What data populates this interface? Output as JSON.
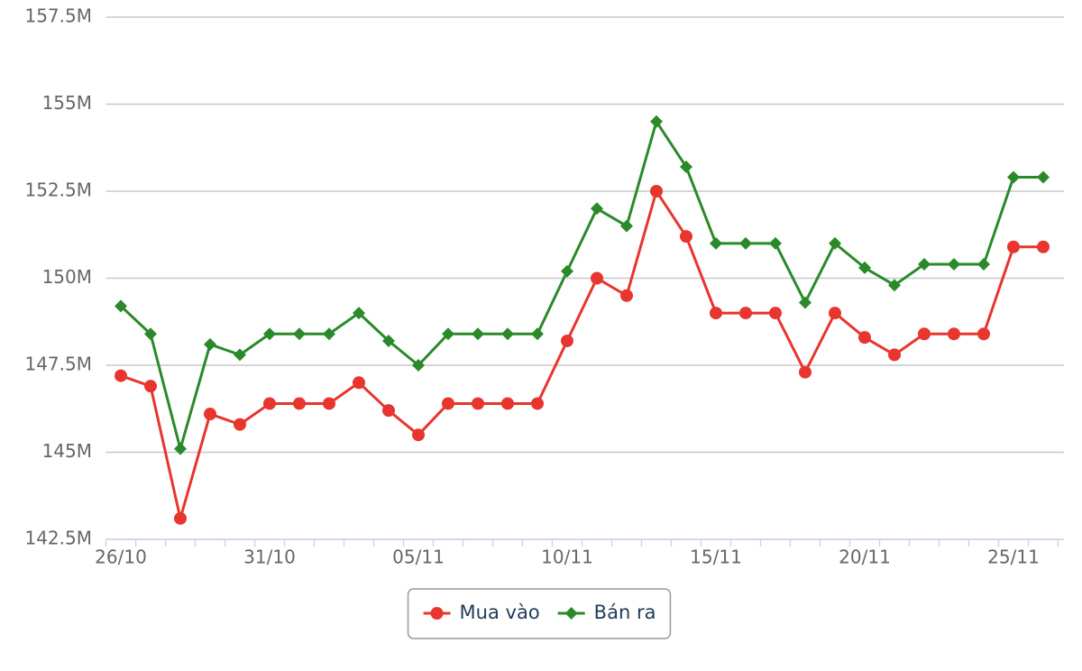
{
  "chart_data": {
    "type": "line",
    "categories": [
      "26/10",
      null,
      null,
      null,
      null,
      "31/10",
      null,
      null,
      null,
      null,
      "05/11",
      null,
      null,
      null,
      null,
      "10/11",
      null,
      null,
      null,
      null,
      "15/11",
      null,
      null,
      null,
      null,
      "20/11",
      null,
      null,
      null,
      null,
      "25/11",
      null
    ],
    "series": [
      {
        "name": "Mua vào",
        "color": "#e8352e",
        "marker": "circle",
        "values": [
          147.2,
          146.9,
          143.1,
          146.1,
          145.8,
          146.4,
          146.4,
          146.4,
          147.0,
          146.2,
          145.5,
          146.4,
          146.4,
          146.4,
          146.4,
          148.2,
          150.0,
          149.5,
          152.5,
          151.2,
          149.0,
          149.0,
          149.0,
          147.3,
          149.0,
          148.3,
          147.8,
          148.4,
          148.4,
          148.4,
          150.9,
          150.9
        ]
      },
      {
        "name": "Bán ra",
        "color": "#2a8a2a",
        "marker": "diamond",
        "values": [
          149.2,
          148.4,
          145.1,
          148.1,
          147.8,
          148.4,
          148.4,
          148.4,
          149.0,
          148.2,
          147.5,
          148.4,
          148.4,
          148.4,
          148.4,
          150.2,
          152.0,
          151.5,
          154.5,
          153.2,
          151.0,
          151.0,
          151.0,
          149.3,
          151.0,
          150.3,
          149.8,
          150.4,
          150.4,
          150.4,
          152.9,
          152.9
        ]
      }
    ],
    "ylim": [
      142.5,
      157.5
    ],
    "yticks": [
      {
        "value": 142.5,
        "label": "142.5M"
      },
      {
        "value": 145,
        "label": "145M"
      },
      {
        "value": 147.5,
        "label": "147.5M"
      },
      {
        "value": 150,
        "label": "150M"
      },
      {
        "value": 152.5,
        "label": "152.5M"
      },
      {
        "value": 155,
        "label": "155M"
      },
      {
        "value": 157.5,
        "label": "157.5M"
      }
    ],
    "grid": true,
    "legend": "bottom"
  }
}
